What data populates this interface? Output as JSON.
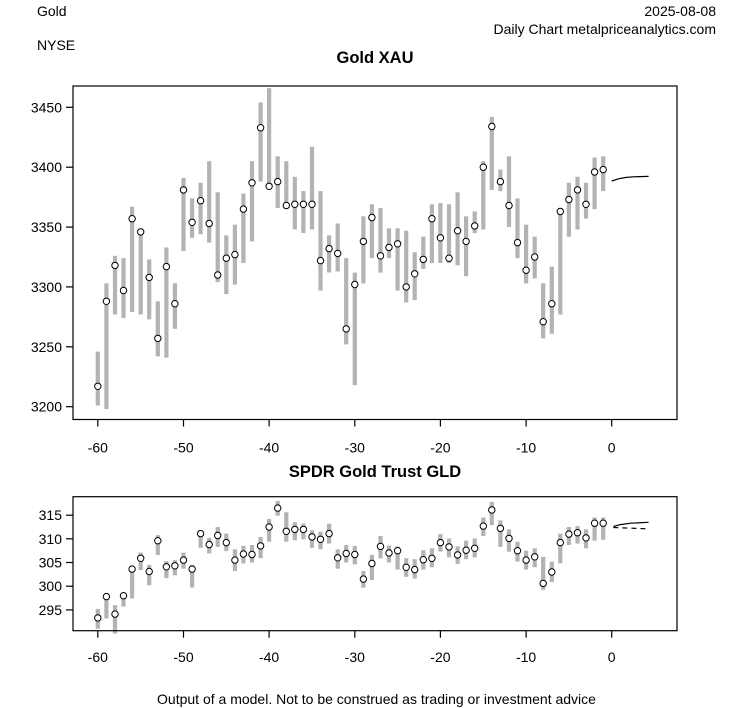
{
  "header": {
    "instrument": "Gold",
    "exchange": "NYSE",
    "date": "2025-08-08",
    "source": "Daily Chart metalpriceanalytics.com"
  },
  "footer": {
    "disclaimer": "Output of a model. Not to be construed as trading or investment advice"
  },
  "colors": {
    "background": "#ffffff",
    "bar": "#b3b3b3",
    "marker_fill": "#ffffff",
    "marker_stroke": "#000000",
    "axis": "#000000",
    "forecast": "#000000"
  },
  "chart_data": [
    {
      "type": "scatter",
      "title": "Gold XAU",
      "subtitle": "",
      "xlabel": "",
      "ylabel": "",
      "grid": false,
      "legend": "none",
      "marker": "open-circle",
      "range_bars": true,
      "x_first": -60,
      "x_step": 1,
      "xlim": [
        -62.9,
        7.62
      ],
      "ylim": [
        3189.3,
        3467.8
      ],
      "xticks": [
        -60,
        -50,
        -40,
        -30,
        -20,
        -10,
        0
      ],
      "yticks": [
        3200,
        3250,
        3300,
        3350,
        3400,
        3450
      ],
      "close": [
        3217,
        3288,
        3318,
        3297,
        3357,
        3346,
        3308,
        3257,
        3317,
        3286,
        3381,
        3354,
        3372,
        3353,
        3310,
        3324,
        3327,
        3365,
        3387,
        3433,
        3384,
        3388,
        3368,
        3369,
        3369,
        3369,
        3322,
        3332,
        3328,
        3265,
        3302,
        3338,
        3358,
        3326,
        3333,
        3336,
        3300,
        3311,
        3323,
        3357,
        3341,
        3324,
        3347,
        3338,
        3351,
        3400,
        3434,
        3388,
        3368,
        3337,
        3314,
        3325,
        3271,
        3286,
        3363,
        3373,
        3381,
        3369,
        3396,
        3398
      ],
      "high": [
        3246,
        3303,
        3326,
        3324,
        3367,
        3349,
        3323,
        3288,
        3333,
        3303,
        3391,
        3374,
        3387,
        3405,
        3379,
        3343,
        3352,
        3378,
        3405,
        3454,
        3466,
        3409,
        3405,
        3392,
        3380,
        3417,
        3380,
        3343,
        3353,
        3324,
        3312,
        3359,
        3369,
        3366,
        3349,
        3349,
        3347,
        3329,
        3342,
        3369,
        3370,
        3369,
        3379,
        3359,
        3363,
        3405,
        3442,
        3398,
        3409,
        3374,
        3352,
        3342,
        3303,
        3317,
        3366,
        3387,
        3392,
        3387,
        3408,
        3409
      ],
      "low": [
        3201,
        3198,
        3277,
        3274,
        3279,
        3277,
        3273,
        3242,
        3241,
        3265,
        3330,
        3341,
        3344,
        3337,
        3304,
        3294,
        3302,
        3320,
        3338,
        3388,
        3385,
        3366,
        3365,
        3348,
        3345,
        3348,
        3297,
        3312,
        3313,
        3252,
        3218,
        3303,
        3324,
        3312,
        3324,
        3297,
        3287,
        3289,
        3315,
        3320,
        3320,
        3320,
        3318,
        3309,
        3345,
        3348,
        3381,
        3380,
        3350,
        3324,
        3303,
        3307,
        3257,
        3261,
        3277,
        3342,
        3348,
        3357,
        3365,
        3380
      ],
      "forecasts": [
        {
          "style": "solid",
          "points": [
            [
              0.0,
              3388.5
            ],
            [
              0.8,
              3390.3
            ],
            [
              1.6,
              3391.4
            ],
            [
              2.5,
              3392.0
            ],
            [
              4.3,
              3392.3
            ]
          ]
        }
      ]
    },
    {
      "type": "scatter",
      "title": "SPDR Gold Trust GLD",
      "subtitle": "",
      "xlabel": "",
      "ylabel": "",
      "grid": false,
      "legend": "none",
      "marker": "open-circle",
      "range_bars": true,
      "x_first": -60,
      "x_step": 1,
      "xlim": [
        -62.9,
        7.62
      ],
      "ylim": [
        290.6,
        318.9
      ],
      "xticks": [
        -60,
        -50,
        -40,
        -30,
        -20,
        -10,
        0
      ],
      "yticks": [
        295,
        300,
        305,
        310,
        315
      ],
      "close": [
        293.3,
        297.8,
        294.1,
        298.0,
        303.6,
        305.9,
        303.1,
        309.6,
        304.1,
        304.3,
        305.5,
        303.6,
        311.1,
        308.8,
        310.7,
        309.2,
        305.5,
        306.8,
        306.7,
        308.5,
        312.5,
        316.5,
        311.6,
        312.0,
        312.0,
        310.4,
        309.9,
        311.1,
        306.0,
        306.9,
        306.7,
        301.5,
        304.8,
        308.4,
        307.0,
        307.5,
        304.0,
        303.5,
        305.6,
        305.9,
        309.2,
        308.3,
        306.6,
        307.6,
        308.0,
        312.7,
        316.1,
        312.2,
        310.1,
        307.5,
        305.5,
        306.2,
        300.6,
        303.0,
        309.2,
        311.0,
        311.3,
        310.2,
        313.3,
        313.3
      ],
      "high": [
        295.2,
        298.1,
        296.0,
        298.5,
        303.7,
        307.1,
        304.5,
        310.8,
        305.3,
        305.5,
        307.1,
        304.5,
        311.8,
        310.2,
        312.5,
        311.1,
        307.8,
        308.5,
        308.7,
        310.4,
        314.2,
        318.0,
        315.6,
        313.5,
        313.2,
        311.8,
        311.5,
        313.2,
        307.8,
        308.7,
        308.5,
        303.2,
        306.6,
        310.6,
        308.6,
        308.4,
        305.9,
        305.7,
        307.6,
        308.0,
        311.0,
        310.1,
        308.4,
        309.6,
        310.1,
        314.5,
        317.8,
        313.9,
        312.0,
        309.4,
        307.5,
        308.0,
        306.2,
        305.2,
        311.1,
        312.5,
        312.7,
        312.0,
        314.5,
        314.5
      ],
      "low": [
        291.0,
        293.2,
        290.0,
        295.7,
        297.4,
        303.4,
        300.2,
        306.6,
        301.7,
        302.3,
        303.7,
        299.7,
        308.1,
        306.9,
        308.3,
        307.4,
        303.2,
        304.8,
        305.0,
        305.9,
        309.4,
        314.9,
        309.4,
        309.7,
        309.9,
        308.1,
        307.8,
        309.0,
        303.7,
        305.0,
        304.6,
        299.7,
        301.3,
        305.9,
        305.0,
        303.5,
        302.0,
        301.6,
        303.5,
        304.0,
        307.3,
        306.1,
        304.7,
        305.7,
        306.1,
        310.6,
        312.9,
        308.3,
        307.3,
        305.2,
        303.5,
        304.0,
        299.2,
        300.9,
        304.8,
        308.7,
        309.0,
        308.0,
        309.6,
        309.8
      ],
      "forecasts": [
        {
          "style": "solid",
          "points": [
            [
              0.2,
              312.6
            ],
            [
              1.0,
              313.0
            ],
            [
              2.2,
              313.3
            ],
            [
              4.3,
              313.5
            ]
          ]
        },
        {
          "style": "dashed",
          "points": [
            [
              0.2,
              312.4
            ],
            [
              4.4,
              312.1
            ]
          ]
        }
      ]
    }
  ]
}
